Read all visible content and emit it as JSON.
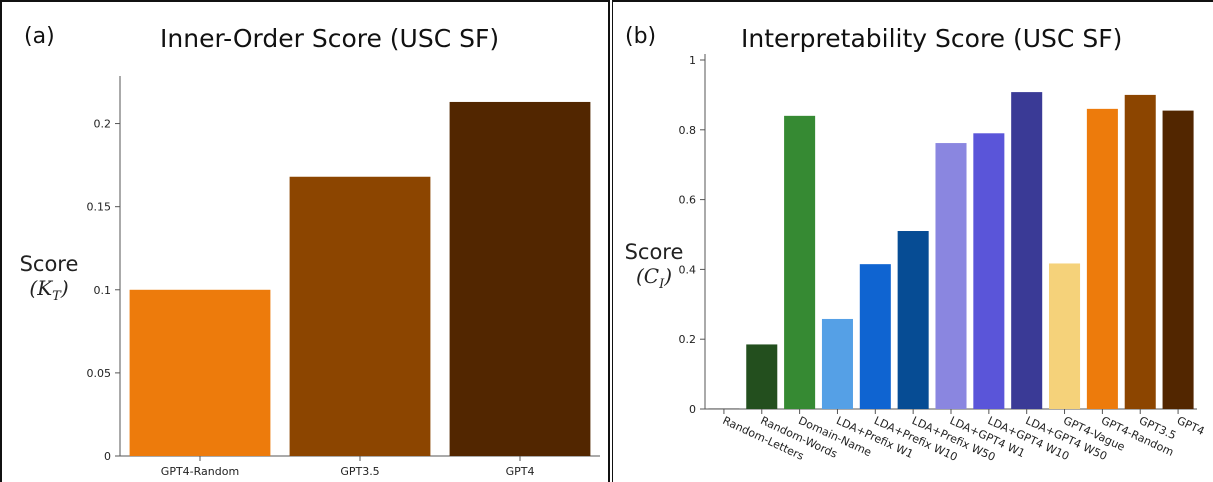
{
  "chart_data": [
    {
      "type": "bar",
      "panel_label": "(a)",
      "title": "Inner-Order Score (USC SF)",
      "ylabel": "Score",
      "ylabel_symbol": "K",
      "ylabel_symbol_sub": "T",
      "categories": [
        "GPT4-Random",
        "GPT3.5",
        "GPT4"
      ],
      "values": [
        0.1,
        0.168,
        0.213
      ],
      "colors": [
        "#ED7B0C",
        "#8C4500",
        "#522600"
      ],
      "ylim": [
        0,
        0.225
      ],
      "yticks": [
        0,
        0.05,
        0.1,
        0.15,
        0.2
      ],
      "ytick_labels": [
        "0",
        "0.05",
        "0.1",
        "0.15",
        "0.2"
      ],
      "grid": false
    },
    {
      "type": "bar",
      "panel_label": "(b)",
      "title": "Interpretability Score (USC SF)",
      "ylabel": "Score",
      "ylabel_symbol": "C",
      "ylabel_symbol_sub": "I",
      "categories": [
        "Random-Letters",
        "Random-Words",
        "Domain-Name",
        "LDA+Prefix W1",
        "LDA+Prefix W10",
        "LDA+Prefix W50",
        "LDA+GPT4 W1",
        "LDA+GPT4 W10",
        "LDA+GPT4 W50",
        "GPT4-Vague",
        "GPT4-Random",
        "GPT3.5",
        "GPT4"
      ],
      "values": [
        0.002,
        0.185,
        0.84,
        0.258,
        0.415,
        0.51,
        0.762,
        0.79,
        0.908,
        0.417,
        0.86,
        0.9,
        0.855
      ],
      "colors": [
        "#6b6b6b",
        "#234F1E",
        "#368A33",
        "#55A0E6",
        "#0F64D1",
        "#064C94",
        "#8A86E0",
        "#5A55D9",
        "#3A3A96",
        "#F5D27A",
        "#ED7B0C",
        "#8C4500",
        "#522600"
      ],
      "ylim": [
        0,
        1
      ],
      "yticks": [
        0,
        0.2,
        0.4,
        0.6,
        0.8,
        1
      ],
      "ytick_labels": [
        "0",
        "0.2",
        "0.4",
        "0.6",
        "0.8",
        "1"
      ],
      "grid": false
    }
  ]
}
